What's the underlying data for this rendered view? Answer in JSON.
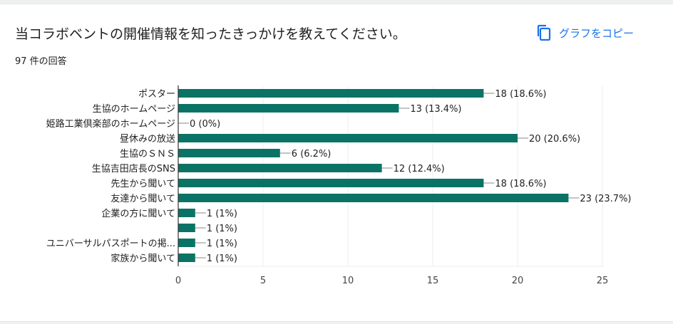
{
  "question": {
    "title": "当コラボベントの開催情報を知ったきっかけを教えてください。",
    "response_count": "97 件の回答",
    "copy_label": "グラフをコピー",
    "copy_icon": "copy-icon"
  },
  "colors": {
    "bar": "#0a7366",
    "accent": "#1a73e8",
    "grid": "#ececec",
    "axis": "#333333",
    "text": "#202124"
  },
  "chart_data": {
    "type": "bar",
    "orientation": "horizontal",
    "categories": [
      "ポスター",
      "生協のホームページ",
      "姫路工業倶楽部のホームページ",
      "昼休みの放送",
      "生協のＳＮＳ",
      "生協吉田店長のSNS",
      "先生から聞いて",
      "友達から聞いて",
      "企業の方に聞いて",
      "",
      "ユニバーサルパスポートの掲...",
      "家族から聞いて"
    ],
    "values": [
      18,
      13,
      0,
      20,
      6,
      12,
      18,
      23,
      1,
      1,
      1,
      1
    ],
    "data_labels": [
      "18 (18.6%)",
      "13 (13.4%)",
      "0 (0%)",
      "20 (20.6%)",
      "6 (6.2%)",
      "12 (12.4%)",
      "18 (18.6%)",
      "23 (23.7%)",
      "1 (1%)",
      "1 (1%)",
      "1 (1%)",
      "1 (1%)"
    ],
    "xlim": [
      0,
      25
    ],
    "xticks": [
      0,
      5,
      10,
      15,
      20,
      25
    ],
    "grid": true
  }
}
